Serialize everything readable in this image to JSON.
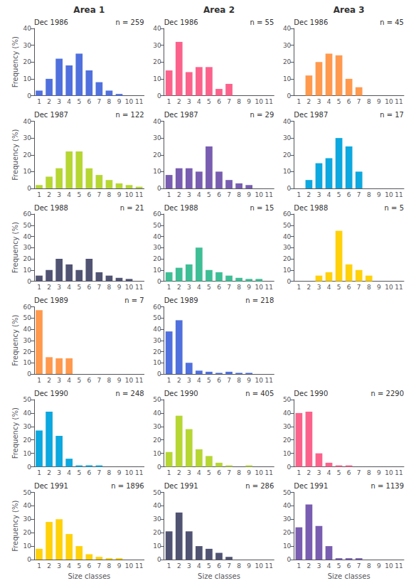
{
  "chart_data": [
    {
      "type": "bar",
      "title": "Area 1",
      "ylabel": "Frequency (%)",
      "annotations": [
        "Dec 1986",
        "n = 259"
      ],
      "categories": [
        "1",
        "2",
        "3",
        "4",
        "5",
        "6",
        "7",
        "8",
        "9",
        "10",
        "11"
      ],
      "values": [
        3,
        10,
        22,
        18,
        25,
        15,
        8,
        3,
        1,
        0,
        0
      ],
      "ylim": [
        0,
        40
      ],
      "yticks": [
        0,
        10,
        20,
        30,
        40
      ],
      "grid": false
    },
    {
      "type": "bar",
      "ylabel": "Frequency (%)",
      "annotations": [
        "Dec 1987",
        "n = 122"
      ],
      "categories": [
        "1",
        "2",
        "3",
        "4",
        "5",
        "6",
        "7",
        "8",
        "9",
        "10",
        "11"
      ],
      "values": [
        2,
        7,
        12,
        22,
        22,
        12,
        8,
        5,
        3,
        2,
        1
      ],
      "ylim": [
        0,
        40
      ],
      "yticks": [
        0,
        10,
        20,
        30,
        40
      ],
      "grid": false
    },
    {
      "type": "bar",
      "ylabel": "Frequency (%)",
      "annotations": [
        "Dec 1988",
        "n = 21"
      ],
      "categories": [
        "1",
        "2",
        "3",
        "4",
        "5",
        "6",
        "7",
        "8",
        "9",
        "10",
        "11"
      ],
      "values": [
        5,
        10,
        20,
        15,
        10,
        20,
        8,
        5,
        3,
        2,
        0
      ],
      "ylim": [
        0,
        60
      ],
      "yticks": [
        0,
        10,
        20,
        30,
        40,
        50,
        60
      ],
      "grid": false
    },
    {
      "type": "bar",
      "ylabel": "Frequency (%)",
      "annotations": [
        "Dec 1989",
        "n = 7"
      ],
      "categories": [
        "1",
        "2",
        "3",
        "4",
        "5",
        "6",
        "7",
        "8",
        "9",
        "10",
        "11"
      ],
      "values": [
        57,
        15,
        14,
        14,
        0,
        0,
        0,
        0,
        0,
        0,
        0
      ],
      "ylim": [
        0,
        60
      ],
      "yticks": [
        0,
        10,
        20,
        30,
        40,
        50,
        60
      ],
      "grid": false
    },
    {
      "type": "bar",
      "ylabel": "Frequency (%)",
      "annotations": [
        "Dec 1990",
        "n = 248"
      ],
      "categories": [
        "1",
        "2",
        "3",
        "4",
        "5",
        "6",
        "7",
        "8",
        "9",
        "10",
        "11"
      ],
      "values": [
        27,
        41,
        23,
        6,
        1,
        1,
        1,
        0,
        0,
        0,
        0
      ],
      "ylim": [
        0,
        50
      ],
      "yticks": [
        0,
        10,
        20,
        30,
        40,
        50
      ],
      "grid": false
    },
    {
      "type": "bar",
      "ylabel": "Frequency (%)",
      "xlabel": "Size classes",
      "annotations": [
        "Dec 1991",
        "n = 1896"
      ],
      "categories": [
        "1",
        "2",
        "3",
        "4",
        "5",
        "6",
        "7",
        "8",
        "9",
        "10",
        "11"
      ],
      "values": [
        8,
        28,
        30,
        19,
        10,
        4,
        2,
        1,
        1,
        0,
        0
      ],
      "ylim": [
        0,
        50
      ],
      "yticks": [
        0,
        10,
        20,
        30,
        40,
        50
      ],
      "grid": false
    },
    {
      "type": "bar",
      "title": "Area 2",
      "annotations": [
        "Dec 1986",
        "n = 55"
      ],
      "categories": [
        "1",
        "2",
        "3",
        "4",
        "5",
        "6",
        "7",
        "8",
        "9",
        "10",
        "11"
      ],
      "values": [
        15,
        32,
        14,
        17,
        17,
        4,
        7,
        0,
        0,
        0,
        0
      ],
      "ylim": [
        0,
        40
      ],
      "yticks": [
        0,
        10,
        20,
        30,
        40
      ],
      "grid": false
    },
    {
      "type": "bar",
      "annotations": [
        "Dec 1987",
        "n = 29"
      ],
      "categories": [
        "1",
        "2",
        "3",
        "4",
        "5",
        "6",
        "7",
        "8",
        "9",
        "10",
        "11"
      ],
      "values": [
        8,
        12,
        12,
        10,
        25,
        10,
        5,
        3,
        2,
        0,
        0
      ],
      "ylim": [
        0,
        40
      ],
      "yticks": [
        0,
        10,
        20,
        30,
        40
      ],
      "grid": false
    },
    {
      "type": "bar",
      "annotations": [
        "Dec 1988",
        "n = 15"
      ],
      "categories": [
        "1",
        "2",
        "3",
        "4",
        "5",
        "6",
        "7",
        "8",
        "9",
        "10",
        "11"
      ],
      "values": [
        8,
        12,
        15,
        30,
        10,
        8,
        5,
        3,
        2,
        2,
        0
      ],
      "ylim": [
        0,
        60
      ],
      "yticks": [
        0,
        10,
        20,
        30,
        40,
        50,
        60
      ],
      "grid": false
    },
    {
      "type": "bar",
      "annotations": [
        "Dec 1989",
        "n = 218"
      ],
      "categories": [
        "1",
        "2",
        "3",
        "4",
        "5",
        "6",
        "7",
        "8",
        "9",
        "10",
        "11"
      ],
      "values": [
        38,
        48,
        10,
        3,
        2,
        1,
        2,
        1,
        1,
        0,
        0
      ],
      "ylim": [
        0,
        60
      ],
      "yticks": [
        0,
        10,
        20,
        30,
        40,
        50,
        60
      ],
      "grid": false
    },
    {
      "type": "bar",
      "annotations": [
        "Dec 1990",
        "n = 405"
      ],
      "categories": [
        "1",
        "2",
        "3",
        "4",
        "5",
        "6",
        "7",
        "8",
        "9",
        "10",
        "11"
      ],
      "values": [
        11,
        38,
        28,
        13,
        8,
        3,
        1,
        0,
        1,
        0,
        0
      ],
      "ylim": [
        0,
        50
      ],
      "yticks": [
        0,
        10,
        20,
        30,
        40,
        50
      ],
      "grid": false
    },
    {
      "type": "bar",
      "xlabel": "Size classes",
      "annotations": [
        "Dec 1991",
        "n = 286"
      ],
      "categories": [
        "1",
        "2",
        "3",
        "4",
        "5",
        "6",
        "7",
        "8",
        "9",
        "10",
        "11"
      ],
      "values": [
        21,
        35,
        21,
        10,
        8,
        5,
        2,
        0,
        0,
        0,
        0
      ],
      "ylim": [
        0,
        50
      ],
      "yticks": [
        0,
        10,
        20,
        30,
        40,
        50
      ],
      "grid": false
    },
    {
      "type": "bar",
      "title": "Area 3",
      "annotations": [
        "Dec 1986",
        "n = 45"
      ],
      "categories": [
        "1",
        "2",
        "3",
        "4",
        "5",
        "6",
        "7",
        "8",
        "9",
        "10",
        "11"
      ],
      "values": [
        0,
        12,
        20,
        25,
        24,
        10,
        5,
        0,
        0,
        0,
        0
      ],
      "ylim": [
        0,
        40
      ],
      "yticks": [
        0,
        10,
        20,
        30,
        40
      ],
      "grid": false
    },
    {
      "type": "bar",
      "annotations": [
        "Dec 1987",
        "n = 17"
      ],
      "categories": [
        "1",
        "2",
        "3",
        "4",
        "5",
        "6",
        "7",
        "8",
        "9",
        "10",
        "11"
      ],
      "values": [
        0,
        5,
        15,
        18,
        30,
        25,
        10,
        0,
        0,
        0,
        0
      ],
      "ylim": [
        0,
        40
      ],
      "yticks": [
        0,
        10,
        20,
        30,
        40
      ],
      "grid": false
    },
    {
      "type": "bar",
      "annotations": [
        "Dec 1988",
        "n = 5"
      ],
      "categories": [
        "1",
        "2",
        "3",
        "4",
        "5",
        "6",
        "7",
        "8",
        "9",
        "10",
        "11"
      ],
      "values": [
        0,
        0,
        5,
        8,
        45,
        15,
        10,
        5,
        0,
        0,
        0
      ],
      "ylim": [
        0,
        60
      ],
      "yticks": [
        0,
        10,
        20,
        30,
        40,
        50,
        60
      ],
      "grid": false
    },
    {
      "type": "bar",
      "annotations": [
        "Dec 1990",
        "n = 2290"
      ],
      "categories": [
        "1",
        "2",
        "3",
        "4",
        "5",
        "6",
        "7",
        "8",
        "9",
        "10",
        "11"
      ],
      "values": [
        40,
        41,
        10,
        3,
        1,
        1,
        0,
        0,
        0,
        0,
        0
      ],
      "ylim": [
        0,
        50
      ],
      "yticks": [
        0,
        10,
        20,
        30,
        40,
        50
      ],
      "grid": false
    },
    {
      "type": "bar",
      "xlabel": "Size classes",
      "annotations": [
        "Dec 1991",
        "n = 1139"
      ],
      "categories": [
        "1",
        "2",
        "3",
        "4",
        "5",
        "6",
        "7",
        "8",
        "9",
        "10",
        "11"
      ],
      "values": [
        24,
        41,
        25,
        10,
        1,
        1,
        1,
        0,
        0,
        0,
        0
      ],
      "ylim": [
        0,
        50
      ],
      "yticks": [
        0,
        10,
        20,
        30,
        40,
        50
      ],
      "grid": false
    }
  ]
}
